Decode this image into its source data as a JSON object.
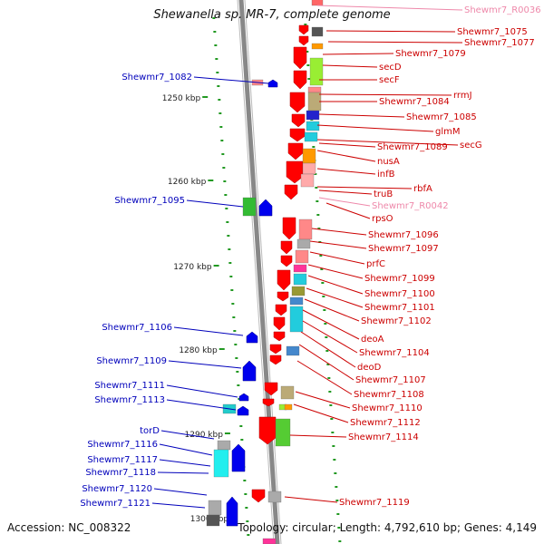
{
  "title": "Shewanella sp. MR-7, complete genome",
  "footer": {
    "accession_label": "Accession:",
    "accession": "NC_008322",
    "topology_label": "Topology:",
    "topology": "circular",
    "length_label": "Length:",
    "length": "4,792,610 bp",
    "genes_label": "Genes:",
    "genes": "4,149"
  },
  "colors": {
    "forward_label": "#cc0000",
    "reverse_label": "#0000bb",
    "rna_label": "#ee88aa",
    "forward_gene": "#ff0000",
    "reverse_gene": "#0000ee",
    "backbone": "#888888",
    "tick": "#229922"
  },
  "ticks": [
    {
      "label": "1250 kbp"
    },
    {
      "label": "1260 kbp"
    },
    {
      "label": "1270 kbp"
    },
    {
      "label": "1280 kbp"
    },
    {
      "label": "1290 kbp"
    },
    {
      "label": "1300 kbp"
    }
  ],
  "left_labels": [
    {
      "text": "Shewmr7_1082"
    },
    {
      "text": "Shewmr7_1095"
    },
    {
      "text": "Shewmr7_1106"
    },
    {
      "text": "Shewmr7_1109"
    },
    {
      "text": "Shewmr7_1111"
    },
    {
      "text": "Shewmr7_1113"
    },
    {
      "text": "torD"
    },
    {
      "text": "Shewmr7_1116"
    },
    {
      "text": "Shewmr7_1117"
    },
    {
      "text": "Shewmr7_1118"
    },
    {
      "text": "Shewmr7_1120"
    },
    {
      "text": "Shewmr7_1121"
    }
  ],
  "right_labels": [
    {
      "text": "Shewmr7_R0036",
      "kind": "rna"
    },
    {
      "text": "Shewmr7_1075",
      "kind": "gene"
    },
    {
      "text": "Shewmr7_1077",
      "kind": "gene"
    },
    {
      "text": "Shewmr7_1079",
      "kind": "gene"
    },
    {
      "text": "secD",
      "kind": "gene"
    },
    {
      "text": "secF",
      "kind": "gene"
    },
    {
      "text": "rrmJ",
      "kind": "gene"
    },
    {
      "text": "Shewmr7_1084",
      "kind": "gene"
    },
    {
      "text": "Shewmr7_1085",
      "kind": "gene"
    },
    {
      "text": "glmM",
      "kind": "gene"
    },
    {
      "text": "secG",
      "kind": "gene"
    },
    {
      "text": "Shewmr7_1089",
      "kind": "gene"
    },
    {
      "text": "nusA",
      "kind": "gene"
    },
    {
      "text": "infB",
      "kind": "gene"
    },
    {
      "text": "rbfA",
      "kind": "gene"
    },
    {
      "text": "truB",
      "kind": "gene"
    },
    {
      "text": "Shewmr7_R0042",
      "kind": "rna"
    },
    {
      "text": "rpsO",
      "kind": "gene"
    },
    {
      "text": "Shewmr7_1096",
      "kind": "gene"
    },
    {
      "text": "Shewmr7_1097",
      "kind": "gene"
    },
    {
      "text": "prfC",
      "kind": "gene"
    },
    {
      "text": "Shewmr7_1099",
      "kind": "gene"
    },
    {
      "text": "Shewmr7_1100",
      "kind": "gene"
    },
    {
      "text": "Shewmr7_1101",
      "kind": "gene"
    },
    {
      "text": "Shewmr7_1102",
      "kind": "gene"
    },
    {
      "text": "deoA",
      "kind": "gene"
    },
    {
      "text": "Shewmr7_1104",
      "kind": "gene"
    },
    {
      "text": "deoD",
      "kind": "gene"
    },
    {
      "text": "Shewmr7_1107",
      "kind": "gene"
    },
    {
      "text": "Shewmr7_1108",
      "kind": "gene"
    },
    {
      "text": "Shewmr7_1110",
      "kind": "gene"
    },
    {
      "text": "Shewmr7_1112",
      "kind": "gene"
    },
    {
      "text": "Shewmr7_1114",
      "kind": "gene"
    },
    {
      "text": "Shewmr7_1119",
      "kind": "gene"
    }
  ]
}
